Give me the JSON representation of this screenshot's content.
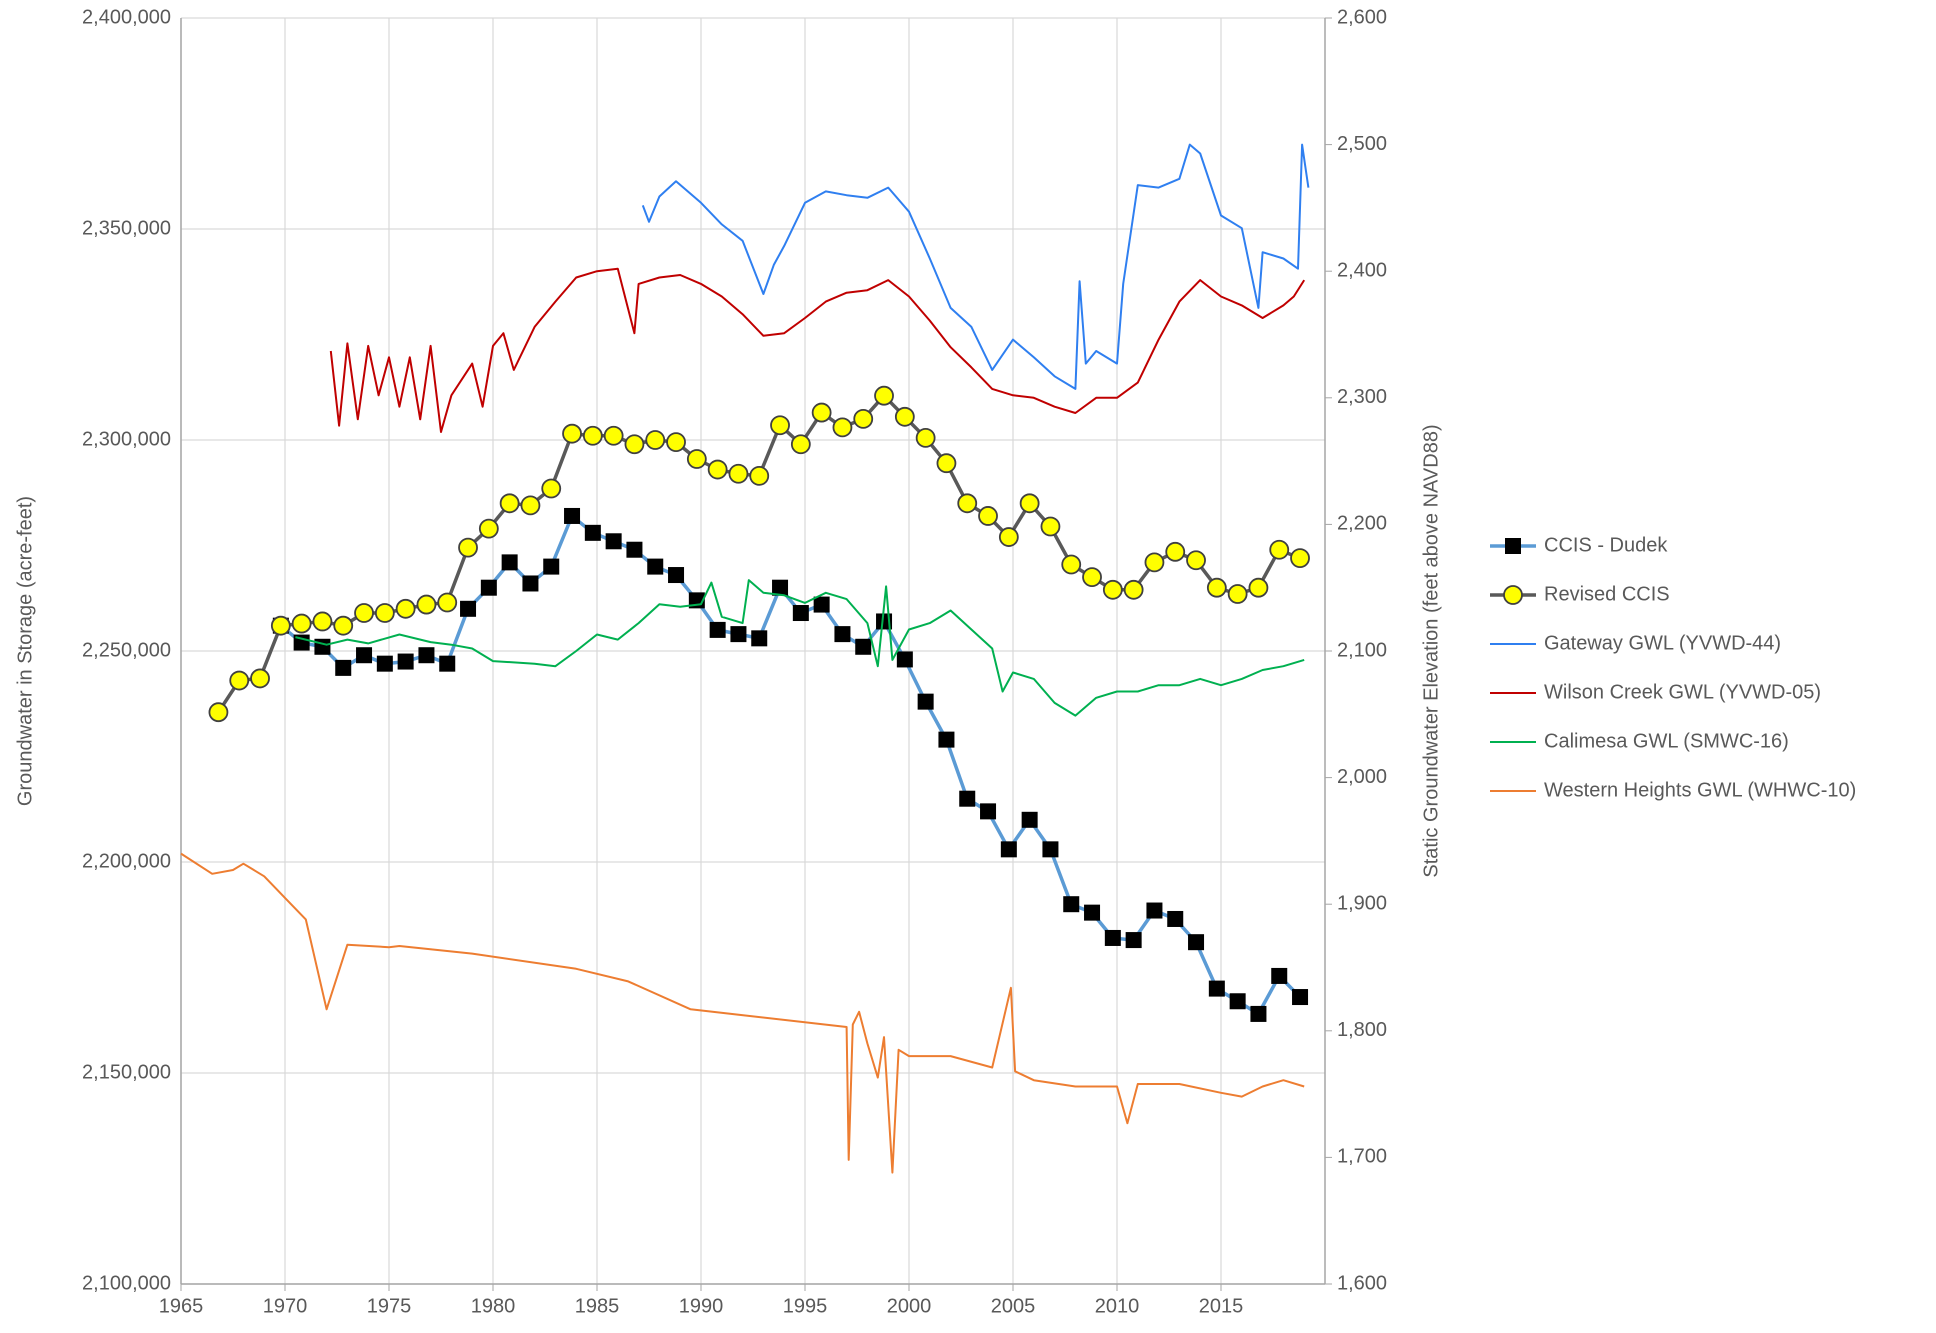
{
  "chart_data": {
    "type": "line",
    "y_label": "Groundwater in Storage (acre-feet)",
    "y2_label": "Static Groundwater Elevation (feet above NAVD88)",
    "xlim": [
      1965,
      2020
    ],
    "xticks": [
      1965,
      1970,
      1975,
      1980,
      1985,
      1990,
      1995,
      2000,
      2005,
      2010,
      2015
    ],
    "ylim": [
      2100000,
      2400000
    ],
    "yticks": [
      {
        "value": 2100000,
        "label": "2,100,000"
      },
      {
        "value": 2150000,
        "label": "2,150,000"
      },
      {
        "value": 2200000,
        "label": "2,200,000"
      },
      {
        "value": 2250000,
        "label": "2,250,000"
      },
      {
        "value": 2300000,
        "label": "2,300,000"
      },
      {
        "value": 2350000,
        "label": "2,350,000"
      },
      {
        "value": 2400000,
        "label": "2,400,000"
      }
    ],
    "y2lim": [
      1600,
      2600
    ],
    "y2ticks": [
      {
        "value": 1600,
        "label": "1,600"
      },
      {
        "value": 1700,
        "label": "1,700"
      },
      {
        "value": 1800,
        "label": "1,800"
      },
      {
        "value": 1900,
        "label": "1,900"
      },
      {
        "value": 2000,
        "label": "2,000"
      },
      {
        "value": 2100,
        "label": "2,100"
      },
      {
        "value": 2200,
        "label": "2,200"
      },
      {
        "value": 2300,
        "label": "2,300"
      },
      {
        "value": 2400,
        "label": "2,400"
      },
      {
        "value": 2500,
        "label": "2,500"
      },
      {
        "value": 2600,
        "label": "2,600"
      }
    ],
    "grid": true,
    "legend": "right",
    "series": [
      {
        "name": "CCIS - Dudek",
        "color": "#5b9bd5",
        "marker": "square",
        "marker_color": "#000000",
        "x": [
          1969.8,
          1970.8,
          1971.8,
          1972.8,
          1973.8,
          1974.8,
          1975.8,
          1976.8,
          1977.8,
          1978.8,
          1979.8,
          1980.8,
          1981.8,
          1982.8,
          1983.8,
          1984.8,
          1985.8,
          1986.8,
          1987.8,
          1988.8,
          1989.8,
          1990.8,
          1991.8,
          1992.8,
          1993.8,
          1994.8,
          1995.8,
          1996.8,
          1997.8,
          1998.8,
          1999.8,
          2000.8,
          2001.8,
          2002.8,
          2003.8,
          2004.8,
          2005.8,
          2006.8,
          2007.8,
          2008.8,
          2009.8,
          2010.8,
          2011.8,
          2012.8,
          2013.8,
          2014.8,
          2015.8,
          2016.8,
          2017.8,
          2018.8
        ],
        "values": [
          2256000,
          2252000,
          2251000,
          2246000,
          2249000,
          2247000,
          2247500,
          2249000,
          2247000,
          2260000,
          2265000,
          2271000,
          2266000,
          2270000,
          2282000,
          2278000,
          2276000,
          2274000,
          2270000,
          2268000,
          2262000,
          2255000,
          2254000,
          2253000,
          2265000,
          2259000,
          2261000,
          2254000,
          2251000,
          2257000,
          2248000,
          2238000,
          2229000,
          2215000,
          2212000,
          2203000,
          2210000,
          2203000,
          2190000,
          2188000,
          2182000,
          2181500,
          2188500,
          2186500,
          2181000,
          2170000,
          2167000,
          2164000,
          2173000,
          2168000
        ]
      },
      {
        "name": "Revised CCIS",
        "color": "#595959",
        "marker": "circle",
        "marker_color": "#ffff00",
        "x": [
          1966.8,
          1967.8,
          1968.8,
          1969.8,
          1970.8,
          1971.8,
          1972.8,
          1973.8,
          1974.8,
          1975.8,
          1976.8,
          1977.8,
          1978.8,
          1979.8,
          1980.8,
          1981.8,
          1982.8,
          1983.8,
          1984.8,
          1985.8,
          1986.8,
          1987.8,
          1988.8,
          1989.8,
          1990.8,
          1991.8,
          1992.8,
          1993.8,
          1994.8,
          1995.8,
          1996.8,
          1997.8,
          1998.8,
          1999.8,
          2000.8,
          2001.8,
          2002.8,
          2003.8,
          2004.8,
          2005.8,
          2006.8,
          2007.8,
          2008.8,
          2009.8,
          2010.8,
          2011.8,
          2012.8,
          2013.8,
          2014.8,
          2015.8,
          2016.8,
          2017.8,
          2018.8
        ],
        "values": [
          2235500,
          2243000,
          2243500,
          2256000,
          2256500,
          2257000,
          2256000,
          2259000,
          2259000,
          2260000,
          2261000,
          2261500,
          2274500,
          2279000,
          2285000,
          2284500,
          2288500,
          2301500,
          2301000,
          2301000,
          2299000,
          2300000,
          2299500,
          2295500,
          2293000,
          2292000,
          2291500,
          2303500,
          2299000,
          2306500,
          2303000,
          2305000,
          2310500,
          2305500,
          2300500,
          2294500,
          2285000,
          2282000,
          2277000,
          2285000,
          2279500,
          2270500,
          2267500,
          2264500,
          2264500,
          2271000,
          2273500,
          2271500,
          2265000,
          2263500,
          2265000,
          2274000,
          2272000
        ]
      },
      {
        "name": "Gateway GWL (YVWD-44)",
        "color": "#2f7ff0",
        "axis": "y2",
        "x": [
          1987.2,
          1987.5,
          1988,
          1988.8,
          1990,
          1991,
          1992,
          1993,
          1993.5,
          1994,
          1995,
          1996,
          1997,
          1998,
          1999,
          2000,
          2001,
          2002,
          2003,
          2004,
          2005,
          2006,
          2007,
          2008,
          2008.2,
          2008.5,
          2009,
          2010,
          2010.3,
          2011,
          2012,
          2013,
          2013.5,
          2014,
          2015,
          2016,
          2016.8,
          2017,
          2018,
          2018.7,
          2018.9,
          2019.2
        ],
        "values": [
          2452,
          2439,
          2459,
          2471,
          2454,
          2437,
          2424,
          2382,
          2405,
          2420,
          2454,
          2463,
          2460,
          2458,
          2466,
          2447,
          2410,
          2371,
          2356,
          2322,
          2346,
          2332,
          2317,
          2307,
          2392,
          2327,
          2337,
          2327,
          2390,
          2468,
          2466,
          2473,
          2500,
          2493,
          2444,
          2434,
          2371,
          2415,
          2410,
          2402,
          2500,
          2466
        ]
      },
      {
        "name": "Wilson Creek GWL (YVWD-05)",
        "color": "#c00000",
        "axis": "y2",
        "x": [
          1972.2,
          1972.6,
          1973,
          1973.5,
          1974,
          1974.5,
          1975,
          1975.5,
          1976,
          1976.5,
          1977,
          1977.5,
          1978,
          1979,
          1979.5,
          1980,
          1980.5,
          1981,
          1982,
          1983,
          1984,
          1985,
          1986,
          1986.8,
          1987,
          1988,
          1989,
          1990,
          1991,
          1992,
          1993,
          1994,
          1995,
          1996,
          1997,
          1998,
          1999,
          2000,
          2001,
          2002,
          2003,
          2004,
          2005,
          2006,
          2007,
          2008,
          2009,
          2010,
          2011,
          2012,
          2013,
          2014,
          2015,
          2016,
          2017,
          2018,
          2018.5,
          2019
        ],
        "values": [
          2337,
          2278,
          2343,
          2283,
          2341,
          2302,
          2332,
          2293,
          2332,
          2283,
          2341,
          2273,
          2302,
          2327,
          2293,
          2341,
          2351,
          2322,
          2356,
          2376,
          2395,
          2400,
          2402,
          2351,
          2390,
          2395,
          2397,
          2390,
          2380,
          2366,
          2349,
          2351,
          2363,
          2376,
          2383,
          2385,
          2393,
          2380,
          2361,
          2340,
          2324,
          2307,
          2302,
          2300,
          2293,
          2288,
          2300,
          2300,
          2312,
          2346,
          2376,
          2393,
          2380,
          2373,
          2363,
          2373,
          2380,
          2393
        ]
      },
      {
        "name": "Calimesa GWL (SMWC-16)",
        "color": "#00b050",
        "axis": "y2",
        "x": [
          1970.5,
          1972,
          1973,
          1974,
          1975.5,
          1977,
          1978,
          1979,
          1980,
          1981,
          1982,
          1983,
          1984,
          1985,
          1986,
          1987,
          1988,
          1989,
          1990,
          1990.5,
          1991,
          1992,
          1992.3,
          1993,
          1994,
          1995,
          1996,
          1997,
          1998,
          1998.5,
          1998.9,
          1999.2,
          2000,
          2001,
          2002,
          2003,
          2004,
          2004.5,
          2005,
          2006,
          2007,
          2008,
          2009,
          2010,
          2011,
          2012,
          2013,
          2014,
          2015,
          2016,
          2017,
          2018,
          2019
        ],
        "values": [
          2111,
          2105,
          2109,
          2106,
          2113,
          2107,
          2105,
          2102,
          2092,
          2091,
          2090,
          2088,
          2100,
          2113,
          2109,
          2122,
          2137,
          2135,
          2137,
          2154,
          2127,
          2122,
          2156,
          2146,
          2144,
          2138,
          2146,
          2141,
          2122,
          2088,
          2151,
          2093,
          2117,
          2122,
          2132,
          2117,
          2102,
          2068,
          2083,
          2078,
          2059,
          2049,
          2063,
          2068,
          2068,
          2073,
          2073,
          2078,
          2073,
          2078,
          2085,
          2088,
          2093
        ]
      },
      {
        "name": "Western Heights GWL (WHWC-10)",
        "color": "#ed7d31",
        "axis": "y2",
        "x": [
          1965,
          1966.5,
          1967.5,
          1968,
          1969,
          1970,
          1971,
          1972,
          1973,
          1975,
          1975.5,
          1979,
          1984,
          1986.5,
          1989.5,
          1997,
          1997.1,
          1997.3,
          1997.6,
          1998,
          1998.5,
          1998.8,
          1999.2,
          1999.5,
          2000,
          2002,
          2004,
          2004.9,
          2005.1,
          2006,
          2008,
          2010,
          2010.5,
          2011,
          2013,
          2015,
          2016,
          2017,
          2018,
          2019
        ],
        "values": [
          1940,
          1924,
          1927,
          1932,
          1922,
          1905,
          1888,
          1817,
          1868,
          1866,
          1867,
          1861,
          1849,
          1839,
          1817,
          1803,
          1698,
          1805,
          1815,
          1790,
          1763,
          1795,
          1688,
          1785,
          1780,
          1780,
          1771,
          1834,
          1768,
          1761,
          1756,
          1756,
          1727,
          1758,
          1758,
          1751,
          1748,
          1756,
          1761,
          1756
        ]
      }
    ]
  }
}
